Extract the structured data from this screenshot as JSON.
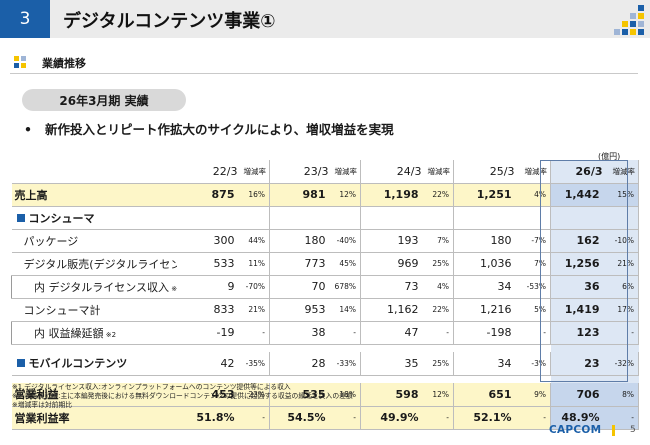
{
  "header": {
    "number": "3",
    "title": "デジタルコンテンツ事業①"
  },
  "section": {
    "title": "業績推移"
  },
  "period_label": "26年3月期 実績",
  "bullet": "新作投入とリピート作拡大のサイクルにより、増収増益を実現",
  "unit": "(億円)",
  "columns": {
    "years": [
      "22/3",
      "23/3",
      "24/3",
      "25/3",
      "26/3"
    ],
    "rate": "増減率"
  },
  "rows": [
    {
      "label": "売上高",
      "values": [
        "875",
        "981",
        "1,198",
        "1,251",
        "1,442"
      ],
      "rates": [
        "16%",
        "12%",
        "22%",
        "4%",
        "15%"
      ]
    },
    {
      "label": "コンシューマ",
      "values": [
        "",
        "",
        "",
        "",
        ""
      ],
      "rates": [
        "",
        "",
        "",
        "",
        ""
      ]
    },
    {
      "label": "パッケージ",
      "values": [
        "300",
        "180",
        "193",
        "180",
        "162"
      ],
      "rates": [
        "44%",
        "-40%",
        "7%",
        "-7%",
        "-10%"
      ]
    },
    {
      "label": "デジタル販売(デジタルライセンス含む)",
      "values": [
        "533",
        "773",
        "969",
        "1,036",
        "1,256"
      ],
      "rates": [
        "11%",
        "45%",
        "25%",
        "7%",
        "21%"
      ]
    },
    {
      "label": "内 デジタルライセンス収入",
      "note": "※1",
      "values": [
        "9",
        "70",
        "73",
        "34",
        "36"
      ],
      "rates": [
        "-70%",
        "678%",
        "4%",
        "-53%",
        "6%"
      ]
    },
    {
      "label": "コンシューマ計",
      "values": [
        "833",
        "953",
        "1,162",
        "1,216",
        "1,419"
      ],
      "rates": [
        "21%",
        "14%",
        "22%",
        "5%",
        "17%"
      ]
    },
    {
      "label": "内 収益繰延額",
      "note": "※2",
      "values": [
        "-19",
        "38",
        "47",
        "-198",
        "123"
      ],
      "rates": [
        "-",
        "-",
        "-",
        "-",
        "-"
      ]
    },
    {
      "label": "モバイルコンテンツ",
      "values": [
        "42",
        "28",
        "35",
        "34",
        "23"
      ],
      "rates": [
        "-35%",
        "-33%",
        "25%",
        "-3%",
        "-32%"
      ]
    },
    {
      "label": "営業利益",
      "values": [
        "453",
        "535",
        "598",
        "651",
        "706"
      ],
      "rates": [
        "23%",
        "18%",
        "12%",
        "9%",
        "8%"
      ]
    },
    {
      "label": "営業利益率",
      "values": [
        "51.8%",
        "54.5%",
        "49.9%",
        "52.1%",
        "48.9%"
      ],
      "rates": [
        "-",
        "-",
        "-",
        "-",
        "-"
      ]
    }
  ],
  "notes": [
    "※1 デジタルライセンス収入:オンラインプラットフォームへのコンテンツ提供等による収入",
    "※2 収益繰延額:主に本編発売後における無料ダウンロードコンテンツの提供に起因する収益の繰延と戻入の差額",
    "※増減率は対前期比"
  ],
  "footer": {
    "logo": "CAPCOM",
    "page": "5"
  },
  "colors": {
    "brand_blue": "#1b5fa8",
    "highlight_yellow": "#fdf6c8",
    "last_col": "#dde7f4",
    "header_gray": "#ebebeb"
  }
}
